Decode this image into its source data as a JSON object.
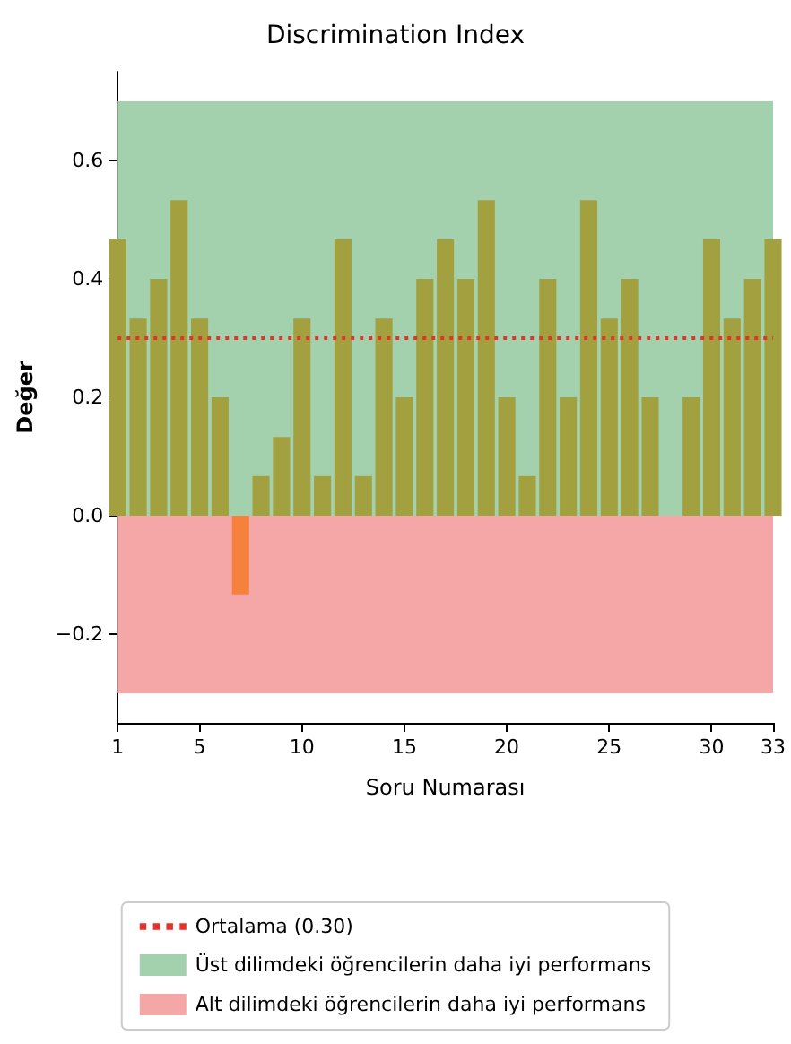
{
  "chart_data": {
    "type": "bar",
    "title": "Discrimination Index",
    "xlabel": "Soru Numarası",
    "ylabel": "Değer",
    "x": [
      1,
      2,
      3,
      4,
      5,
      6,
      7,
      8,
      9,
      10,
      11,
      12,
      13,
      14,
      15,
      16,
      17,
      18,
      19,
      20,
      21,
      22,
      23,
      24,
      25,
      26,
      27,
      28,
      29,
      30,
      31,
      32,
      33
    ],
    "values": [
      0.467,
      0.333,
      0.4,
      0.533,
      0.333,
      0.2,
      -0.133,
      0.067,
      0.133,
      0.333,
      0.067,
      0.467,
      0.067,
      0.333,
      0.2,
      0.4,
      0.467,
      0.4,
      0.533,
      0.2,
      0.067,
      0.4,
      0.2,
      0.533,
      0.333,
      0.4,
      0.2,
      0,
      0.2,
      0.467,
      0.333,
      0.4,
      0.467
    ],
    "colors": [
      "#a3a03f",
      "#a3a03f",
      "#a3a03f",
      "#a3a03f",
      "#a3a03f",
      "#a3a03f",
      "#f5813d",
      "#a3a03f",
      "#a3a03f",
      "#a3a03f",
      "#a3a03f",
      "#a3a03f",
      "#a3a03f",
      "#a3a03f",
      "#a3a03f",
      "#a3a03f",
      "#a3a03f",
      "#a3a03f",
      "#a3a03f",
      "#a3a03f",
      "#a3a03f",
      "#a3a03f",
      "#a3a03f",
      "#a3a03f",
      "#a3a03f",
      "#a3a03f",
      "#a3a03f",
      "#a3a03f",
      "#a3a03f",
      "#a3a03f",
      "#a3a03f",
      "#a3a03f",
      "#a3a03f"
    ],
    "xlim": [
      1,
      33
    ],
    "xticks": [
      1,
      5,
      10,
      15,
      20,
      25,
      30,
      33
    ],
    "ylim": [
      -0.35,
      0.75
    ],
    "yticks": [
      {
        "value": -0.2,
        "label": "−0.2"
      },
      {
        "value": 0,
        "label": "0.0"
      },
      {
        "value": 0.2,
        "label": "0.2"
      },
      {
        "value": 0.4,
        "label": "0.4"
      },
      {
        "value": 0.6,
        "label": "0.6"
      }
    ],
    "ref_lines": [
      {
        "axis": "y",
        "value": 0.3,
        "label": "Ortalama (0.30)",
        "color": "#e8312a",
        "line_style": "dotted"
      }
    ],
    "bands": [
      {
        "axis": "y",
        "from": 0,
        "to": 0.7,
        "label": "Üst dilimdeki öğrencilerin daha iyi performans",
        "color": "#a3d1ae"
      },
      {
        "axis": "y",
        "from": -0.3,
        "to": 0,
        "label": "Alt dilimdeki öğrencilerin daha iyi performans",
        "color": "#f5a7a8"
      }
    ],
    "grid": false,
    "legend": "bottom"
  }
}
